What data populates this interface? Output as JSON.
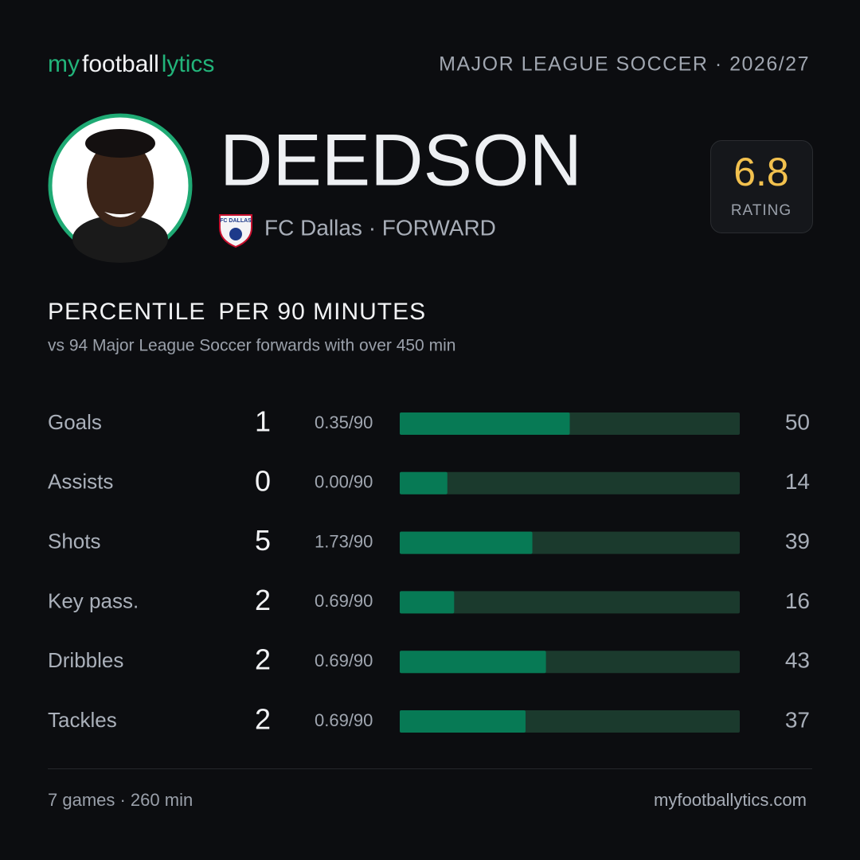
{
  "header": {
    "brand": [
      "my",
      "football",
      "lytics"
    ],
    "league": "MAJOR LEAGUE SOCCER · 2026/27"
  },
  "player": {
    "name": "DEEDSON",
    "crest_text": "FC DALLAS",
    "club_position": "FC Dallas · FORWARD",
    "rating": 6.8,
    "rating_label": "RATING"
  },
  "section": {
    "title": [
      "PERCENTILE",
      "PER 90 MINUTES"
    ],
    "subtitle": "vs 94 Major League Soccer forwards with over 450 min"
  },
  "stats": {
    "xlim": [
      0,
      100
    ],
    "rows": [
      {
        "label": "Goals",
        "count": 1,
        "per90": "0.35/90",
        "percentile": 50
      },
      {
        "label": "Assists",
        "count": 0,
        "per90": "0.00/90",
        "percentile": 14
      },
      {
        "label": "Shots",
        "count": 5,
        "per90": "1.73/90",
        "percentile": 39
      },
      {
        "label": "Key pass.",
        "count": 2,
        "per90": "0.69/90",
        "percentile": 16
      },
      {
        "label": "Dribbles",
        "count": 2,
        "per90": "0.69/90",
        "percentile": 43
      },
      {
        "label": "Tackles",
        "count": 2,
        "per90": "0.69/90",
        "percentile": 37
      }
    ]
  },
  "footer": {
    "summary": "7 games · 260 min",
    "site": "myfootballytics.com"
  }
}
